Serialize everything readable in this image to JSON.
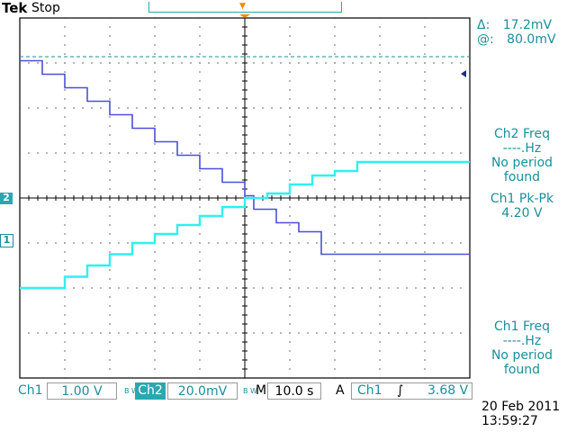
{
  "header": {
    "brand": "Tek",
    "run_status": "Stop"
  },
  "cursor_readouts": {
    "delta_label": "Δ:",
    "delta_value": "17.2mV",
    "at_label": "@:",
    "at_value": "80.0mV"
  },
  "side_panel": {
    "ch2_freq_title": "Ch2 Freq",
    "ch2_freq_value": "----.Hz",
    "ch2_freq_note1": "No period",
    "ch2_freq_note2": "found",
    "ch1_pkpk_title": "Ch1 Pk-Pk",
    "ch1_pkpk_value": "4.20 V",
    "ch1_freq_title": "Ch1 Freq",
    "ch1_freq_value": "----.Hz",
    "ch1_freq_note1": "No period",
    "ch1_freq_note2": "found"
  },
  "channel_markers": {
    "ch1": "1",
    "ch2": "2"
  },
  "status_bar": {
    "ch1_label": "Ch1",
    "ch1_scale": "1.00 V",
    "bw1": "B W",
    "ch2_label": "Ch2",
    "ch2_scale": "20.0mV",
    "bw2": "B W",
    "time_label": "M",
    "time_scale": "10.0 s",
    "trigger_mode": "A",
    "trigger_source": "Ch1",
    "trigger_slope": "∫",
    "trigger_level": "3.68 V"
  },
  "datetime": {
    "date": "20 Feb  2011",
    "time": "13:59:27"
  },
  "colors": {
    "ch1": "#4b4fd9",
    "ch2": "#2ff0f0",
    "grid": "#000000",
    "accent": "#1b8f9a",
    "trigger_marker": "#ff8800"
  },
  "chart_data": {
    "type": "line",
    "time_per_div_s": 10.0,
    "series": [
      {
        "name": "Ch1",
        "volts_per_div": 1.0,
        "x_s": [
          -50,
          -47,
          -45,
          -40,
          -35,
          -30,
          -25,
          -20,
          -15,
          -10,
          -5,
          0,
          2,
          7,
          12,
          17,
          17,
          22,
          27,
          50
        ],
        "y_div": [
          3.05,
          3.05,
          2.75,
          2.45,
          2.15,
          1.85,
          1.55,
          1.25,
          0.95,
          0.65,
          0.35,
          0.05,
          -0.25,
          -0.55,
          -0.75,
          -1.05,
          -1.25,
          -1.25,
          -1.25,
          -1.25
        ],
        "note": "staircase descending, then steps down to flat level"
      },
      {
        "name": "Ch2",
        "volts_per_div": 0.02,
        "x_s": [
          -50,
          -47,
          -40,
          -35,
          -30,
          -25,
          -20,
          -15,
          -10,
          -5,
          0,
          5,
          10,
          15,
          20,
          25,
          50
        ],
        "y_div": [
          -2.0,
          -2.0,
          -1.75,
          -1.5,
          -1.25,
          -1.0,
          -0.8,
          -0.6,
          -0.4,
          -0.2,
          0.0,
          0.1,
          0.3,
          0.5,
          0.6,
          0.8,
          0.8
        ],
        "note": "staircase ascending then flat"
      }
    ],
    "grid": true
  }
}
